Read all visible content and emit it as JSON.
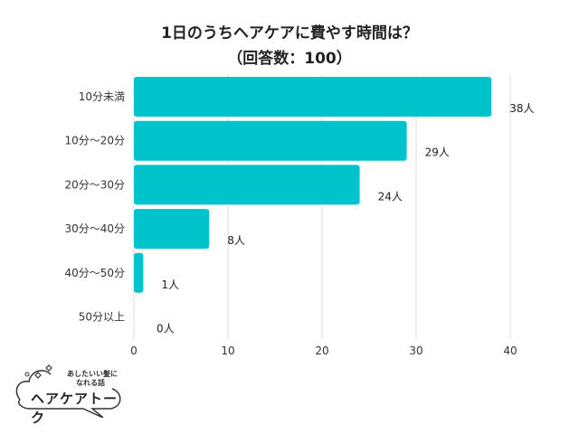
{
  "chart_data": {
    "type": "bar",
    "orientation": "horizontal",
    "title": "1日のうちヘアケアに費やす時間は？",
    "subtitle": "（回答数：100）",
    "categories": [
      "10分未満",
      "10分〜20分",
      "20分〜30分",
      "30分〜40分",
      "40分〜50分",
      "50分以上"
    ],
    "values": [
      38,
      29,
      24,
      8,
      1,
      0
    ],
    "data_labels": [
      "38人",
      "29人",
      "24人",
      "8人",
      "1人",
      "0人"
    ],
    "xlim": [
      0,
      40
    ],
    "xticks": [
      "0",
      "10",
      "20",
      "30",
      "40"
    ],
    "grid": true,
    "color": "#00C3CB"
  },
  "logo": {
    "tagline_1": "あしたいい髪に",
    "tagline_2": "なれる話",
    "name": "ヘアケアトーク"
  }
}
